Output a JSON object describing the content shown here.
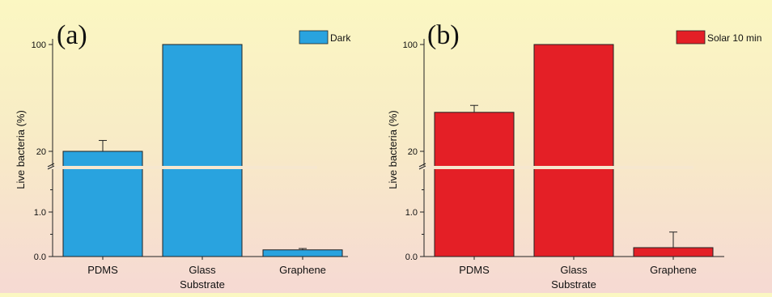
{
  "chart_data": [
    {
      "type": "bar",
      "panel_label": "(a)",
      "categories": [
        "PDMS",
        "Glass",
        "Graphene"
      ],
      "values": [
        20,
        100,
        0.15
      ],
      "errors": [
        1.5,
        0,
        0.03
      ],
      "series_name": "Dark",
      "color": "#29a3df",
      "xlabel": "Substrate",
      "ylabel": "Live bacteria (%)",
      "yticks_upper": [
        "100",
        "20"
      ],
      "yticks_lower": [
        "1.0",
        "0.0"
      ],
      "axis_break": true,
      "legend_position": "top-right"
    },
    {
      "type": "bar",
      "panel_label": "(b)",
      "categories": [
        "PDMS",
        "Glass",
        "Graphene"
      ],
      "values": [
        36,
        100,
        0.2
      ],
      "errors": [
        1.5,
        0,
        0.35
      ],
      "series_name": "Solar 10 min",
      "color": "#e41f26",
      "xlabel": "Substrate",
      "ylabel": "Live bacteria (%)",
      "yticks_upper": [
        "100",
        "20"
      ],
      "yticks_lower": [
        "1.0",
        "0.0"
      ],
      "axis_break": true,
      "legend_position": "top-right"
    }
  ]
}
